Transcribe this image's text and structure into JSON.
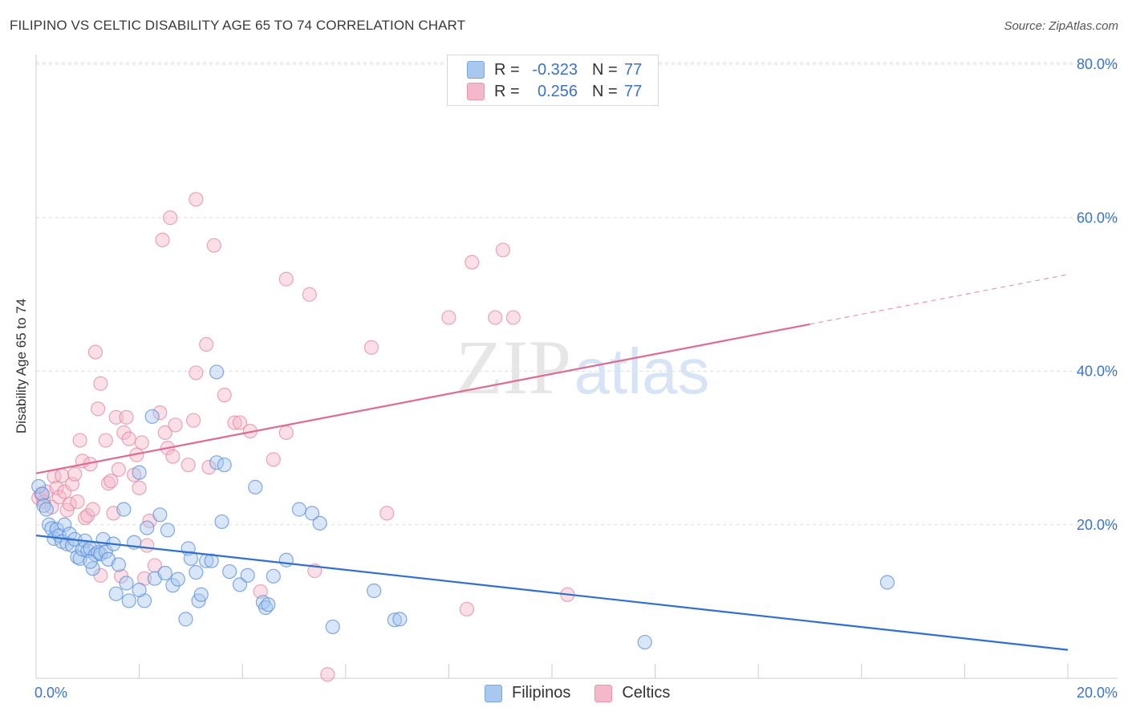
{
  "header": {
    "title": "FILIPINO VS CELTIC DISABILITY AGE 65 TO 74 CORRELATION CHART",
    "source": "Source: ZipAtlas.com"
  },
  "legend": {
    "rows": [
      {
        "r_label": "R =",
        "r_value": "-0.323",
        "n_label": "N =",
        "n_value": "77"
      },
      {
        "r_label": "R =",
        "r_value": "0.256",
        "n_label": "N =",
        "n_value": "77"
      }
    ]
  },
  "bottom_legend": [
    "Filipinos",
    "Celtics"
  ],
  "watermark": {
    "zip": "ZIP",
    "atlas": "atlas"
  },
  "colors": {
    "filipinos_fill": "#a9c8f0",
    "filipinos_stroke": "#5b8fd6",
    "filipinos_line": "#2f6fd0",
    "celtics_fill": "#f5b8ca",
    "celtics_stroke": "#e08aa6",
    "celtics_line": "#e06a92",
    "axis_text": "#3a73c8",
    "grid": "#dddddd"
  },
  "chart_data": {
    "type": "scatter",
    "title": "FILIPINO VS CELTIC DISABILITY AGE 65 TO 74 CORRELATION CHART",
    "xlabel": "",
    "ylabel": "Disability Age 65 to 74",
    "xlim": [
      0,
      20
    ],
    "ylim": [
      0,
      80
    ],
    "x_tick_labels": [
      "0.0%",
      "20.0%"
    ],
    "y_tick_labels": [
      "20.0%",
      "40.0%",
      "60.0%",
      "80.0%"
    ],
    "y_ticks": [
      20,
      40,
      60,
      80
    ],
    "grid": true,
    "legend_position": "top-center",
    "series": [
      {
        "name": "Filipinos",
        "r": -0.323,
        "n": 77,
        "trend": {
          "x": [
            0,
            20
          ],
          "y": [
            18.6,
            3.7
          ],
          "dashed_from": null
        },
        "points": [
          [
            0.05,
            25.0
          ],
          [
            0.12,
            24.0
          ],
          [
            0.15,
            22.5
          ],
          [
            0.2,
            22.0
          ],
          [
            0.25,
            20.0
          ],
          [
            0.3,
            19.5
          ],
          [
            0.35,
            18.2
          ],
          [
            0.4,
            19.4
          ],
          [
            0.45,
            18.6
          ],
          [
            0.5,
            17.8
          ],
          [
            0.55,
            20.0
          ],
          [
            0.6,
            17.5
          ],
          [
            0.65,
            18.8
          ],
          [
            0.7,
            17.3
          ],
          [
            0.75,
            18.1
          ],
          [
            0.8,
            15.8
          ],
          [
            0.85,
            15.6
          ],
          [
            0.9,
            16.8
          ],
          [
            0.95,
            17.9
          ],
          [
            1.0,
            16.6
          ],
          [
            1.05,
            16.9
          ],
          [
            1.1,
            14.3
          ],
          [
            1.15,
            16.1
          ],
          [
            1.2,
            16.4
          ],
          [
            1.25,
            16.2
          ],
          [
            1.3,
            18.1
          ],
          [
            1.35,
            16.5
          ],
          [
            1.4,
            15.5
          ],
          [
            1.5,
            17.5
          ],
          [
            1.55,
            11.0
          ],
          [
            1.6,
            14.8
          ],
          [
            1.7,
            22.0
          ],
          [
            1.75,
            12.4
          ],
          [
            1.8,
            10.1
          ],
          [
            1.9,
            17.7
          ],
          [
            2.0,
            26.8
          ],
          [
            2.1,
            10.1
          ],
          [
            2.15,
            19.6
          ],
          [
            2.25,
            34.1
          ],
          [
            2.3,
            13.0
          ],
          [
            2.4,
            21.3
          ],
          [
            2.5,
            13.7
          ],
          [
            2.55,
            19.3
          ],
          [
            2.65,
            12.1
          ],
          [
            2.75,
            12.9
          ],
          [
            2.9,
            7.7
          ],
          [
            2.95,
            16.9
          ],
          [
            3.0,
            15.6
          ],
          [
            3.1,
            13.8
          ],
          [
            3.15,
            10.1
          ],
          [
            3.2,
            10.9
          ],
          [
            3.3,
            15.3
          ],
          [
            3.4,
            15.3
          ],
          [
            3.5,
            28.1
          ],
          [
            3.5,
            39.9
          ],
          [
            3.6,
            20.4
          ],
          [
            3.65,
            27.8
          ],
          [
            3.75,
            13.9
          ],
          [
            3.95,
            12.2
          ],
          [
            4.1,
            13.4
          ],
          [
            4.25,
            24.9
          ],
          [
            4.4,
            9.9
          ],
          [
            4.45,
            9.2
          ],
          [
            4.5,
            9.6
          ],
          [
            4.6,
            13.3
          ],
          [
            4.85,
            15.4
          ],
          [
            5.1,
            22.0
          ],
          [
            5.35,
            21.5
          ],
          [
            5.5,
            20.2
          ],
          [
            5.75,
            6.7
          ],
          [
            6.55,
            11.4
          ],
          [
            6.95,
            7.6
          ],
          [
            7.05,
            7.7
          ],
          [
            11.8,
            4.7
          ],
          [
            16.5,
            12.5
          ],
          [
            2.0,
            11.5
          ],
          [
            1.05,
            15.2
          ]
        ]
      },
      {
        "name": "Celtics",
        "r": 0.256,
        "n": 77,
        "trend": {
          "x": [
            0,
            20
          ],
          "y": [
            26.7,
            52.6
          ],
          "dashed_from": 15.0
        },
        "points": [
          [
            0.05,
            23.5
          ],
          [
            0.1,
            24.0
          ],
          [
            0.15,
            23.0
          ],
          [
            0.2,
            24.3
          ],
          [
            0.3,
            22.3
          ],
          [
            0.35,
            26.3
          ],
          [
            0.4,
            24.8
          ],
          [
            0.45,
            23.6
          ],
          [
            0.5,
            26.4
          ],
          [
            0.55,
            24.3
          ],
          [
            0.6,
            21.9
          ],
          [
            0.65,
            22.7
          ],
          [
            0.7,
            25.3
          ],
          [
            0.75,
            26.6
          ],
          [
            0.8,
            23.0
          ],
          [
            0.85,
            31.0
          ],
          [
            0.9,
            28.3
          ],
          [
            0.95,
            20.9
          ],
          [
            1.0,
            21.2
          ],
          [
            1.05,
            27.9
          ],
          [
            1.1,
            22.0
          ],
          [
            1.15,
            42.5
          ],
          [
            1.2,
            35.1
          ],
          [
            1.25,
            38.4
          ],
          [
            1.35,
            31.0
          ],
          [
            1.4,
            25.4
          ],
          [
            1.45,
            25.7
          ],
          [
            1.5,
            21.5
          ],
          [
            1.55,
            34.0
          ],
          [
            1.6,
            27.2
          ],
          [
            1.65,
            13.3
          ],
          [
            1.7,
            32.0
          ],
          [
            1.75,
            34.0
          ],
          [
            1.8,
            31.2
          ],
          [
            1.9,
            26.5
          ],
          [
            1.95,
            29.1
          ],
          [
            2.0,
            24.8
          ],
          [
            2.05,
            30.7
          ],
          [
            2.15,
            17.3
          ],
          [
            2.2,
            20.5
          ],
          [
            2.3,
            14.7
          ],
          [
            2.4,
            34.6
          ],
          [
            2.45,
            57.1
          ],
          [
            2.5,
            32.0
          ],
          [
            2.55,
            30.0
          ],
          [
            2.6,
            60.0
          ],
          [
            2.65,
            28.9
          ],
          [
            2.7,
            33.0
          ],
          [
            2.95,
            27.8
          ],
          [
            3.05,
            33.6
          ],
          [
            3.1,
            39.8
          ],
          [
            3.1,
            62.4
          ],
          [
            3.3,
            43.5
          ],
          [
            3.35,
            27.5
          ],
          [
            3.45,
            56.4
          ],
          [
            3.65,
            36.9
          ],
          [
            3.85,
            33.3
          ],
          [
            3.95,
            33.3
          ],
          [
            4.15,
            32.2
          ],
          [
            4.35,
            11.3
          ],
          [
            4.6,
            28.5
          ],
          [
            4.85,
            32.0
          ],
          [
            4.85,
            52.0
          ],
          [
            5.3,
            50.0
          ],
          [
            5.4,
            14.0
          ],
          [
            5.65,
            0.5
          ],
          [
            6.5,
            43.1
          ],
          [
            6.8,
            21.5
          ],
          [
            8.0,
            47.0
          ],
          [
            8.35,
            9.0
          ],
          [
            8.45,
            54.2
          ],
          [
            8.9,
            47.0
          ],
          [
            9.05,
            55.8
          ],
          [
            9.25,
            47.0
          ],
          [
            10.3,
            10.9
          ],
          [
            2.1,
            13.0
          ],
          [
            1.25,
            13.4
          ]
        ]
      }
    ]
  }
}
